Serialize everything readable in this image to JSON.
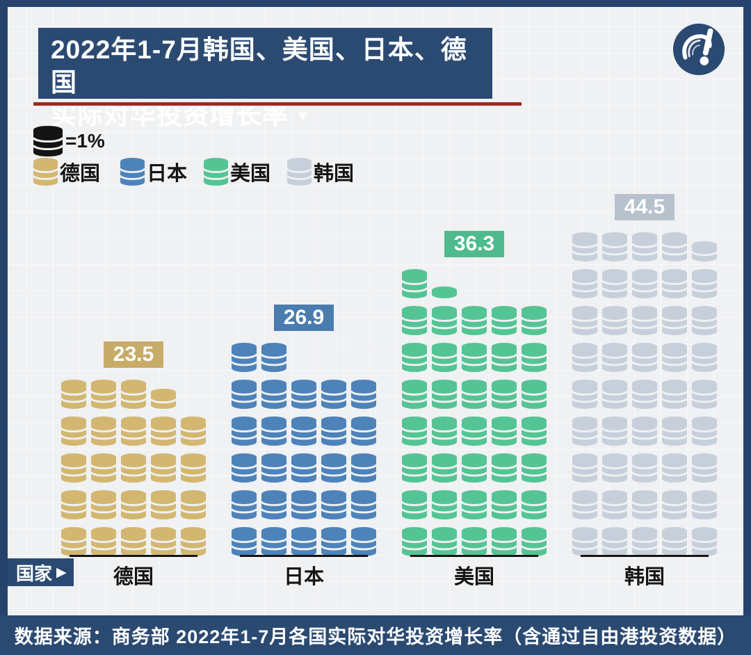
{
  "title": {
    "line1": "2022年1-7月韩国、美国、日本、德国",
    "line2": "实际对华投资增长率",
    "dropdown_arrow": "▼"
  },
  "legend": {
    "unit_label": "=1%",
    "unit_color": "#141414",
    "items": [
      {
        "label": "德国",
        "color": "#d3b771"
      },
      {
        "label": "日本",
        "color": "#4e83ba"
      },
      {
        "label": "美国",
        "color": "#55c494"
      },
      {
        "label": "韩国",
        "color": "#c7d0da"
      }
    ]
  },
  "axis": {
    "label": "国家",
    "arrow": "▶"
  },
  "footer": {
    "source_text": "数据来源：商务部 2022年1-7月各国实际对华投资增长率（含通过自由港投资数据）"
  },
  "colors": {
    "navy": "#2b4a72",
    "border_navy": "#26446b",
    "red_line": "#9c2b25",
    "background": "#eff1f3",
    "black": "#141414"
  },
  "chart_data": {
    "type": "pictogram-bar",
    "title": "2022年1-7月韩国、美国、日本、德国实际对华投资增长率",
    "unit": "1 coin = 1%",
    "xlabel": "国家",
    "categories": [
      "德国",
      "日本",
      "美国",
      "韩国"
    ],
    "values": [
      23.5,
      26.9,
      36.3,
      44.5
    ],
    "series": [
      {
        "key": "germany",
        "name": "德国",
        "value": "23.5",
        "coin_color": "#d3b771",
        "badge_color": "#c7ac69",
        "coins_per_row": 5,
        "full_rows": 4,
        "top_row": [
          "full",
          "full",
          "full",
          "half"
        ]
      },
      {
        "key": "japan",
        "name": "日本",
        "value": "26.9",
        "coin_color": "#4e83ba",
        "badge_color": "#4a7cae",
        "coins_per_row": 5,
        "full_rows": 5,
        "top_row": [
          "full",
          "full"
        ]
      },
      {
        "key": "usa",
        "name": "美国",
        "value": "36.3",
        "coin_color": "#55c494",
        "badge_color": "#4fba8d",
        "coins_per_row": 5,
        "full_rows": 7,
        "top_row": [
          "full",
          "flat"
        ]
      },
      {
        "key": "korea",
        "name": "韩国",
        "value": "44.5",
        "coin_color": "#c7d0da",
        "badge_color": "#b6c1cc",
        "coins_per_row": 5,
        "full_rows": 8,
        "top_row": [
          "full",
          "full",
          "full",
          "full",
          "half"
        ]
      }
    ]
  }
}
